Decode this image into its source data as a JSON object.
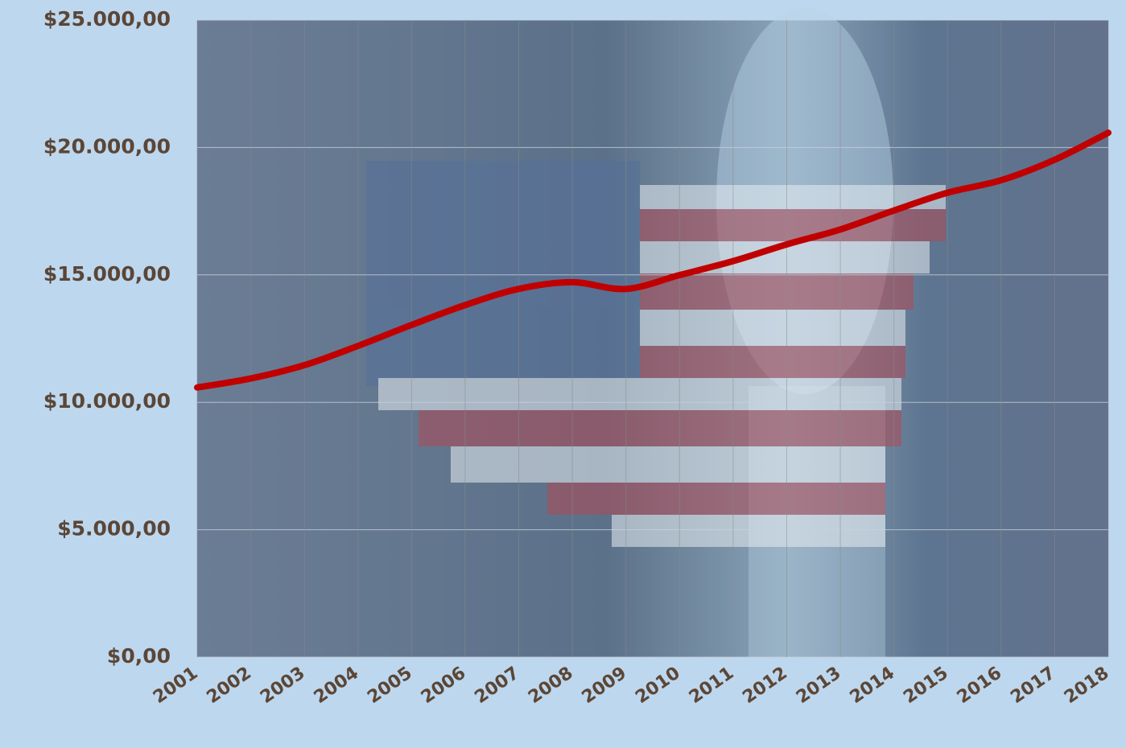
{
  "chart_data": {
    "type": "line",
    "categories": [
      "2001",
      "2002",
      "2003",
      "2004",
      "2005",
      "2006",
      "2007",
      "2008",
      "2009",
      "2010",
      "2011",
      "2012",
      "2013",
      "2014",
      "2015",
      "2016",
      "2017",
      "2018"
    ],
    "series": [
      {
        "color": "#c00000",
        "values": [
          10582,
          10936,
          11458,
          12214,
          13037,
          13815,
          14452,
          14713,
          14449,
          14992,
          15543,
          16197,
          16785,
          17527,
          18225,
          18715,
          19519,
          20580
        ]
      }
    ],
    "ylim": [
      0,
      25000
    ],
    "yticks": [
      {
        "value": 0,
        "label": "$0,00"
      },
      {
        "value": 5000,
        "label": "$5.000,00"
      },
      {
        "value": 10000,
        "label": "$10.000,00"
      },
      {
        "value": 15000,
        "label": "$15.000,00"
      },
      {
        "value": 20000,
        "label": "$20.000,00"
      },
      {
        "value": 25000,
        "label": "$25.000,00"
      }
    ],
    "grid": true
  }
}
